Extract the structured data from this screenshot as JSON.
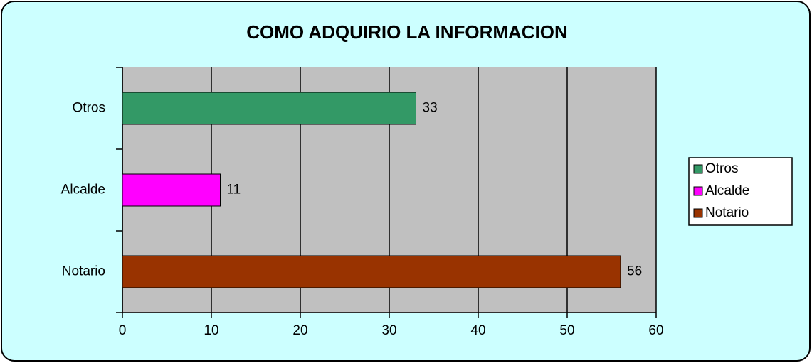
{
  "chart_data": {
    "type": "bar",
    "orientation": "horizontal",
    "title": "COMO ADQUIRIO LA INFORMACION",
    "categories": [
      "Otros",
      "Alcalde",
      "Notario"
    ],
    "values": [
      33,
      11,
      56
    ],
    "colors": [
      "#339966",
      "#ff00ff",
      "#993300"
    ],
    "xlim": [
      0,
      60
    ],
    "xticks": [
      0,
      10,
      20,
      30,
      40,
      50,
      60
    ],
    "grid": true,
    "legend": "right"
  }
}
